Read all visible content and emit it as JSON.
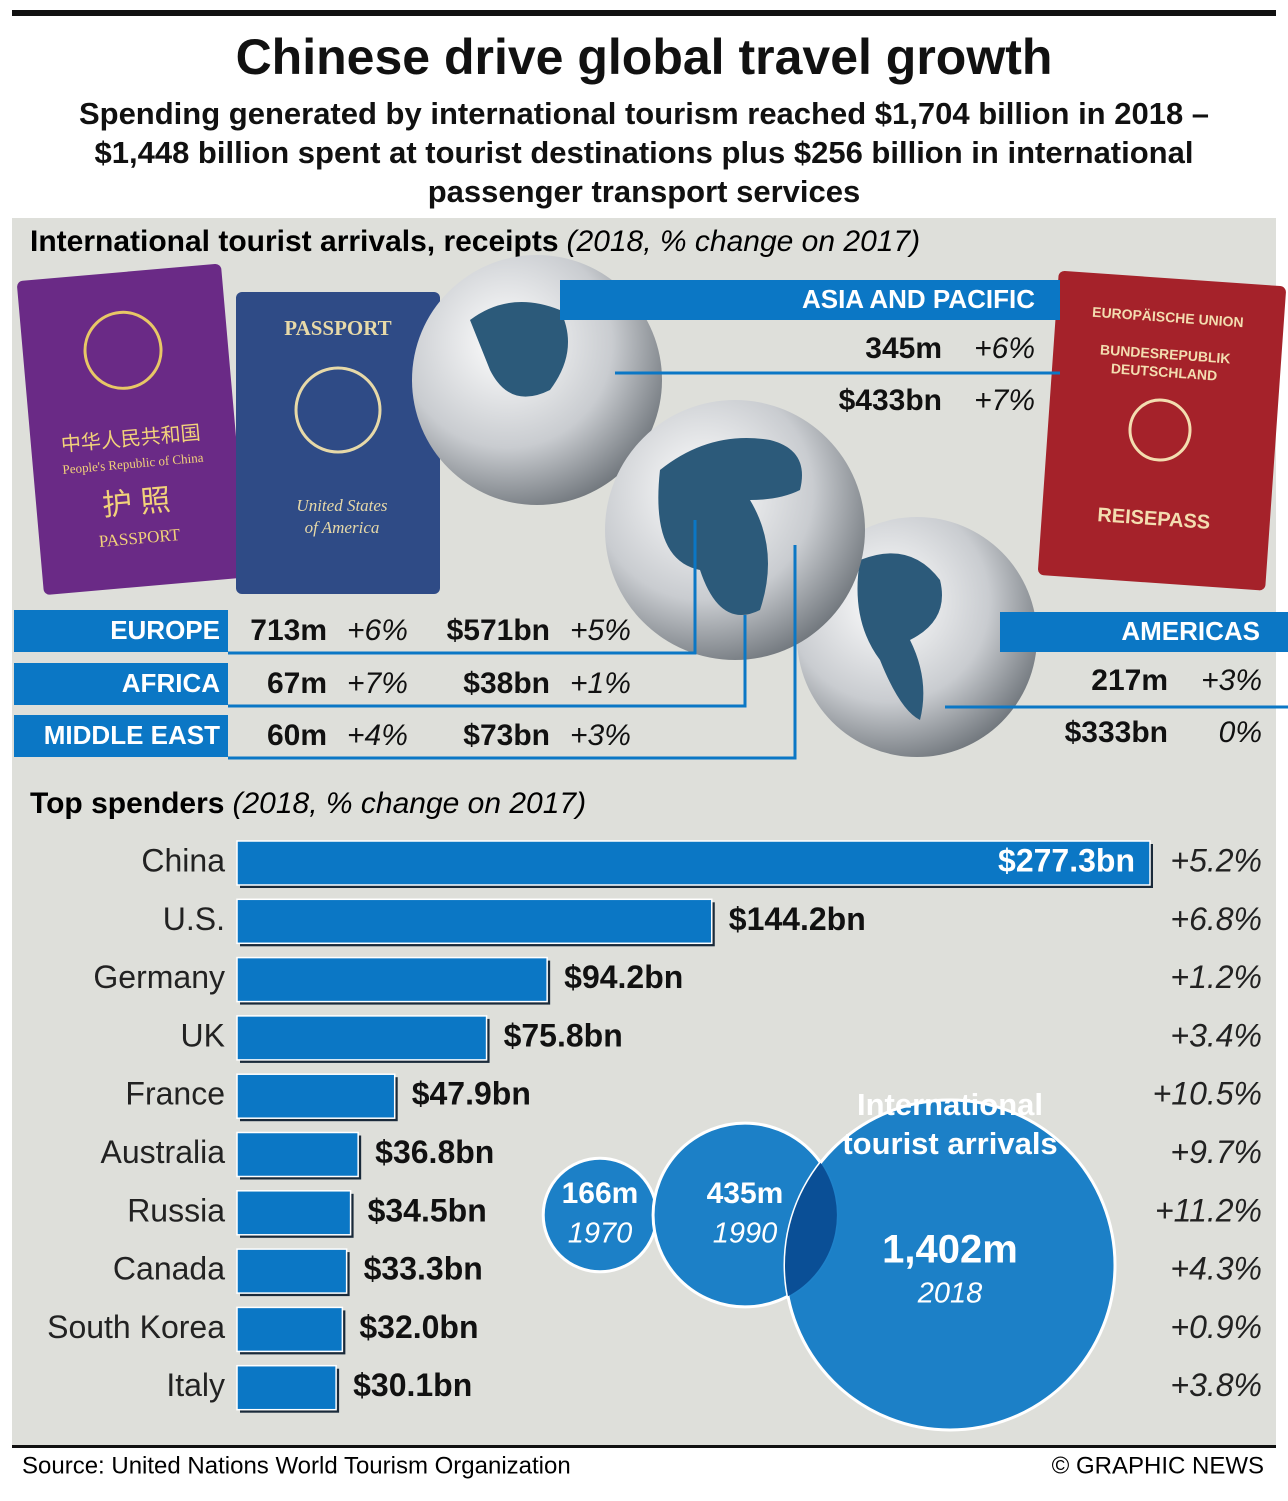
{
  "header": {
    "title": "Chinese drive global travel growth",
    "subtitle": "Spending generated by international tourism reached $1,704 billion in 2018 – $1,448 billion spent at tourist destinations plus $256 billion in international passenger transport services"
  },
  "arrivals_section": {
    "title": "International tourist arrivals, receipts",
    "subtitle": "(2018, % change on 2017)"
  },
  "passports": {
    "china": [
      "中华人民共和国",
      "People's Republic of China",
      "护 照",
      "PASSPORT"
    ],
    "us": [
      "PASSPORT",
      "United States",
      "of America"
    ],
    "germany": [
      "EUROPÄISCHE UNION",
      "BUNDESREPUBLIK",
      "DEUTSCHLAND",
      "REISEPASS"
    ]
  },
  "regions": [
    {
      "name": "ASIA AND PACIFIC",
      "arrivals": "345m",
      "arrivals_change": "+6%",
      "receipts": "$433bn",
      "receipts_change": "+7%"
    },
    {
      "name": "EUROPE",
      "arrivals": "713m",
      "arrivals_change": "+6%",
      "receipts": "$571bn",
      "receipts_change": "+5%"
    },
    {
      "name": "AFRICA",
      "arrivals": "67m",
      "arrivals_change": "+7%",
      "receipts": "$38bn",
      "receipts_change": "+1%"
    },
    {
      "name": "MIDDLE EAST",
      "arrivals": "60m",
      "arrivals_change": "+4%",
      "receipts": "$73bn",
      "receipts_change": "+3%"
    },
    {
      "name": "AMERICAS",
      "arrivals": "217m",
      "arrivals_change": "+3%",
      "receipts": "$333bn",
      "receipts_change": "0%"
    }
  ],
  "chart_data": [
    {
      "type": "bar",
      "title": "Top spenders",
      "subtitle": "(2018, % change on 2017)",
      "categories": [
        "China",
        "U.S.",
        "Germany",
        "UK",
        "France",
        "Australia",
        "Russia",
        "Canada",
        "South Korea",
        "Italy"
      ],
      "values": [
        277.3,
        144.2,
        94.2,
        75.8,
        47.9,
        36.8,
        34.5,
        33.3,
        32.0,
        30.1
      ],
      "value_labels": [
        "$277.3bn",
        "$144.2bn",
        "$94.2bn",
        "$75.8bn",
        "$47.9bn",
        "$36.8bn",
        "$34.5bn",
        "$33.3bn",
        "$32.0bn",
        "$30.1bn"
      ],
      "change_labels": [
        "+5.2%",
        "+6.8%",
        "+1.2%",
        "+3.4%",
        "+10.5%",
        "+9.7%",
        "+11.2%",
        "+4.3%",
        "+0.9%",
        "+3.8%"
      ],
      "color": "#0b77c5"
    },
    {
      "type": "bubble",
      "title": "International tourist arrivals",
      "categories": [
        "1970",
        "1990",
        "2018"
      ],
      "values": [
        166,
        435,
        1402
      ],
      "value_labels": [
        "166m",
        "435m",
        "1,402m"
      ],
      "color": "#0b77c5"
    }
  ],
  "footer": {
    "source": "Source: United Nations World Tourism Organization",
    "credit": "© GRAPHIC NEWS"
  }
}
